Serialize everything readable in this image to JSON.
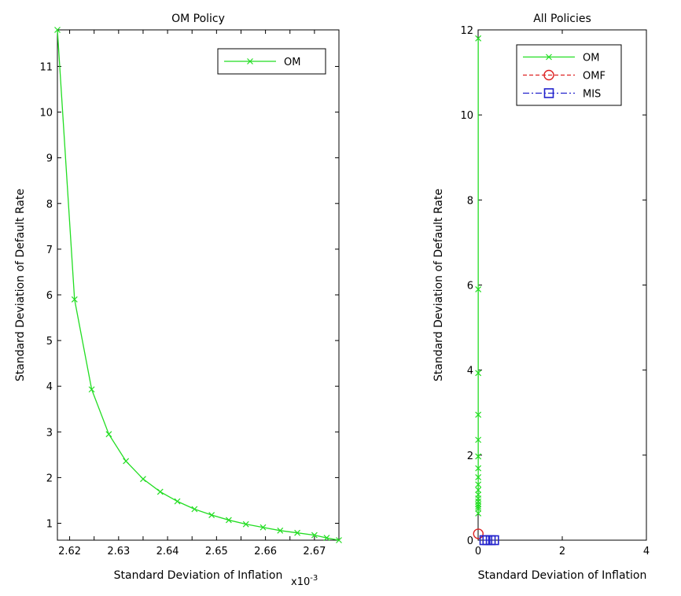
{
  "chart_data": [
    {
      "type": "line",
      "title": "OM Policy",
      "xlabel": "Standard Deviation of Inflation",
      "ylabel": "Standard Deviation of Default Rate",
      "x_exponent_label": "x10",
      "x_exponent_power": "-3",
      "xlim": [
        2.6175,
        2.675
      ],
      "ylim": [
        0.63,
        11.8
      ],
      "xticks": [
        2.62,
        2.625,
        2.63,
        2.635,
        2.64,
        2.645,
        2.65,
        2.655,
        2.66,
        2.665,
        2.67
      ],
      "xtick_labels": [
        "2.62",
        "",
        "2.63",
        "",
        "2.64",
        "",
        "2.65",
        "",
        "2.66",
        "",
        "2.67"
      ],
      "yticks": [
        1,
        2,
        3,
        4,
        5,
        6,
        7,
        8,
        9,
        10,
        11
      ],
      "ytick_labels": [
        "1",
        "2",
        "3",
        "4",
        "5",
        "6",
        "7",
        "8",
        "9",
        "10",
        "11"
      ],
      "grid": false,
      "legend_position": "top-right",
      "series": [
        {
          "name": "OM",
          "color": "#22dd22",
          "line_style": "solid",
          "marker": "x",
          "x": [
            2.6175,
            2.621,
            2.6245,
            2.628,
            2.6315,
            2.635,
            2.6385,
            2.642,
            2.6455,
            2.649,
            2.6525,
            2.656,
            2.6595,
            2.663,
            2.6665,
            2.67,
            2.6725,
            2.675
          ],
          "y": [
            11.8,
            5.9,
            3.93,
            2.95,
            2.36,
            1.97,
            1.69,
            1.48,
            1.31,
            1.18,
            1.07,
            0.98,
            0.91,
            0.84,
            0.79,
            0.74,
            0.68,
            0.63
          ]
        }
      ]
    },
    {
      "type": "line",
      "title": "All Policies",
      "xlabel": "Standard Deviation of Inflation",
      "ylabel": "Standard Deviation of Default Rate",
      "xlim": [
        0,
        4
      ],
      "ylim": [
        0,
        12
      ],
      "xticks": [
        0,
        2,
        4
      ],
      "xtick_labels": [
        "0",
        "2",
        "4"
      ],
      "yticks": [
        0,
        2,
        4,
        6,
        8,
        10,
        12
      ],
      "ytick_labels": [
        "0",
        "2",
        "4",
        "6",
        "8",
        "10",
        "12"
      ],
      "grid": false,
      "legend_position": "top-right",
      "series": [
        {
          "name": "OM",
          "color": "#22dd22",
          "line_style": "solid",
          "marker": "x",
          "x": [
            0.0026,
            0.0026,
            0.0026,
            0.0026,
            0.0026,
            0.0026,
            0.0026,
            0.0026,
            0.0026,
            0.0026,
            0.0026,
            0.0026,
            0.0026,
            0.0026,
            0.0026,
            0.0027,
            0.0027
          ],
          "y": [
            11.8,
            5.9,
            3.93,
            2.95,
            2.36,
            1.97,
            1.69,
            1.48,
            1.31,
            1.18,
            1.07,
            0.98,
            0.91,
            0.84,
            0.79,
            0.74,
            0.63
          ]
        },
        {
          "name": "OMF",
          "color": "#dd2222",
          "line_style": "dashed",
          "marker": "circle",
          "x": [
            0.005
          ],
          "y": [
            0.15
          ]
        },
        {
          "name": "MIS",
          "color": "#2222cc",
          "line_style": "dashdot",
          "marker": "square",
          "x": [
            0.15,
            0.22,
            0.3,
            0.38
          ],
          "y": [
            0.0,
            0.0,
            0.0,
            0.0
          ]
        }
      ]
    }
  ]
}
